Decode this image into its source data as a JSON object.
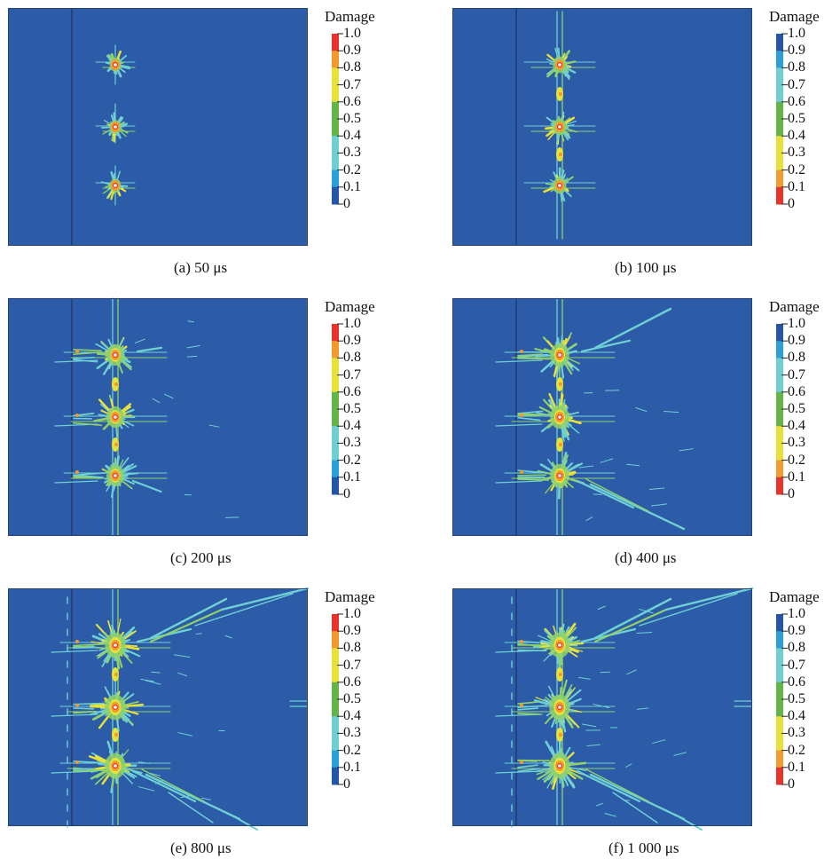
{
  "figure": {
    "colors": {
      "background": "#2c5ba8",
      "frame": "#26447a",
      "seam": "#1d3769",
      "crack_light": "#6fd0d4",
      "crack_mid": "#8fd16a",
      "crack_yellow": "#e8e13a",
      "crack_orange": "#f29a2e",
      "crack_red": "#e8322a"
    },
    "legend": {
      "title": "Damage",
      "labels_ascending": [
        "1.0",
        "0.9",
        "0.8",
        "0.7",
        "0.6",
        "0.5",
        "0.4",
        "0.3",
        "0.2",
        "0.1",
        "0"
      ],
      "labels_descending": [
        "1.0",
        "0.9",
        "0.8",
        "0.7",
        "0.6",
        "0.5",
        "0.4",
        "0.3",
        "0.2",
        "0.1",
        "0"
      ],
      "colors_ascending": [
        "#e8322a",
        "#f29a2e",
        "#e8e13a",
        "#e8e13a",
        "#63b54a",
        "#63b54a",
        "#6fcfd3",
        "#6fcfd3",
        "#2a9fd8",
        "#2356a6"
      ],
      "colors_descending": [
        "#2356a6",
        "#2a9fd8",
        "#6fcfd3",
        "#6fcfd3",
        "#63b54a",
        "#63b54a",
        "#e8e13a",
        "#e8e13a",
        "#f29a2e",
        "#e8322a"
      ]
    },
    "panels": [
      {
        "id": "a",
        "caption": "(a) 50 μs",
        "stage": 1,
        "legend_style": "ascending"
      },
      {
        "id": "b",
        "caption": "(b) 100 μs",
        "stage": 2,
        "legend_style": "descending"
      },
      {
        "id": "c",
        "caption": "(c) 200 μs",
        "stage": 3,
        "legend_style": "ascending"
      },
      {
        "id": "d",
        "caption": "(d) 400 μs",
        "stage": 4,
        "legend_style": "descending"
      },
      {
        "id": "e",
        "caption": "(e) 800 μs",
        "stage": 5,
        "legend_style": "ascending"
      },
      {
        "id": "f",
        "caption": "(f) 1 000 μs",
        "stage": 6,
        "legend_style": "descending"
      }
    ]
  }
}
